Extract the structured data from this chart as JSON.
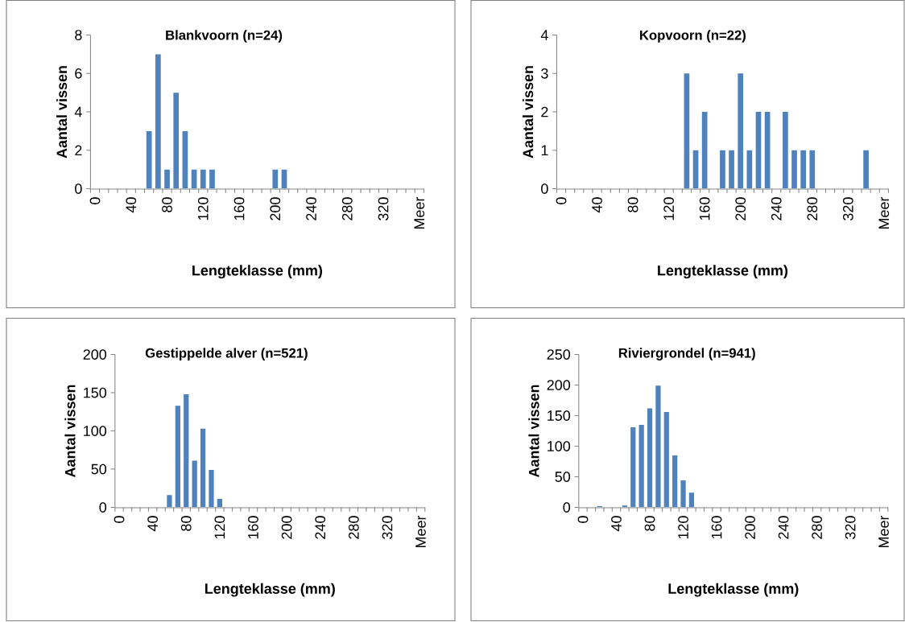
{
  "chart_data": [
    {
      "type": "bar",
      "title": "Blankvoorn (n=24)",
      "xlabel": "Lengteklasse (mm)",
      "ylabel": "Aantal vissen",
      "categories": [
        "0",
        null,
        null,
        null,
        "40",
        null,
        null,
        null,
        "80",
        null,
        null,
        null,
        "120",
        null,
        null,
        null,
        "160",
        null,
        null,
        null,
        "200",
        null,
        null,
        null,
        "240",
        null,
        null,
        null,
        "280",
        null,
        null,
        null,
        "320",
        null,
        null,
        null,
        "Meer"
      ],
      "values": [
        0,
        0,
        0,
        0,
        0,
        0,
        3,
        7,
        1,
        5,
        3,
        1,
        1,
        1,
        0,
        0,
        0,
        0,
        0,
        0,
        1,
        1,
        0,
        0,
        0,
        0,
        0,
        0,
        0,
        0,
        0,
        0,
        0,
        0,
        0,
        0,
        0
      ],
      "color": "#4f81bd",
      "ylim": [
        0,
        8
      ],
      "yticks": [
        0,
        2,
        4,
        6,
        8
      ]
    },
    {
      "type": "bar",
      "title": "Kopvoorn (n=22)",
      "xlabel": "Lengteklasse (mm)",
      "ylabel": "Aantal vissen",
      "categories": [
        "0",
        null,
        null,
        null,
        "40",
        null,
        null,
        null,
        "80",
        null,
        null,
        null,
        "120",
        null,
        null,
        null,
        "160",
        null,
        null,
        null,
        "200",
        null,
        null,
        null,
        "240",
        null,
        null,
        null,
        "280",
        null,
        null,
        null,
        "320",
        null,
        null,
        null,
        "Meer"
      ],
      "values": [
        0,
        0,
        0,
        0,
        0,
        0,
        0,
        0,
        0,
        0,
        0,
        0,
        0,
        0,
        3,
        1,
        2,
        0,
        1,
        1,
        3,
        1,
        2,
        2,
        0,
        2,
        1,
        1,
        1,
        0,
        0,
        0,
        0,
        0,
        1,
        0,
        0
      ],
      "color": "#4f81bd",
      "ylim": [
        0,
        4
      ],
      "yticks": [
        0,
        1,
        2,
        3,
        4
      ]
    },
    {
      "type": "bar",
      "title": "Gestippelde alver (n=521)",
      "xlabel": "Lengteklasse (mm)",
      "ylabel": "Aantal vissen",
      "categories": [
        "0",
        null,
        null,
        null,
        "40",
        null,
        null,
        null,
        "80",
        null,
        null,
        null,
        "120",
        null,
        null,
        null,
        "160",
        null,
        null,
        null,
        "200",
        null,
        null,
        null,
        "240",
        null,
        null,
        null,
        "280",
        null,
        null,
        null,
        "320",
        null,
        null,
        null,
        "Meer"
      ],
      "values": [
        0,
        0,
        0,
        0,
        0,
        0,
        16,
        133,
        148,
        61,
        103,
        49,
        11,
        0,
        0,
        0,
        0,
        0,
        0,
        0,
        0,
        0,
        0,
        0,
        0,
        0,
        0,
        0,
        0,
        0,
        0,
        0,
        0,
        0,
        0,
        0,
        0
      ],
      "color": "#4f81bd",
      "ylim": [
        0,
        200
      ],
      "yticks": [
        0,
        50,
        100,
        150,
        200
      ]
    },
    {
      "type": "bar",
      "title": "Riviergrondel (n=941)",
      "xlabel": "Lengteklasse (mm)",
      "ylabel": "Aantal vissen",
      "categories": [
        "0",
        null,
        null,
        null,
        "40",
        null,
        null,
        null,
        "80",
        null,
        null,
        null,
        "120",
        null,
        null,
        null,
        "160",
        null,
        null,
        null,
        "200",
        null,
        null,
        null,
        "240",
        null,
        null,
        null,
        "280",
        null,
        null,
        null,
        "320",
        null,
        null,
        null,
        "Meer"
      ],
      "values": [
        0,
        0,
        2,
        0,
        0,
        3,
        131,
        135,
        162,
        199,
        156,
        85,
        44,
        24,
        0,
        0,
        0,
        0,
        0,
        0,
        0,
        0,
        0,
        0,
        0,
        0,
        0,
        0,
        0,
        0,
        0,
        0,
        0,
        0,
        0,
        0,
        0
      ],
      "color": "#4f81bd",
      "ylim": [
        0,
        250
      ],
      "yticks": [
        0,
        50,
        100,
        150,
        200,
        250
      ]
    }
  ]
}
